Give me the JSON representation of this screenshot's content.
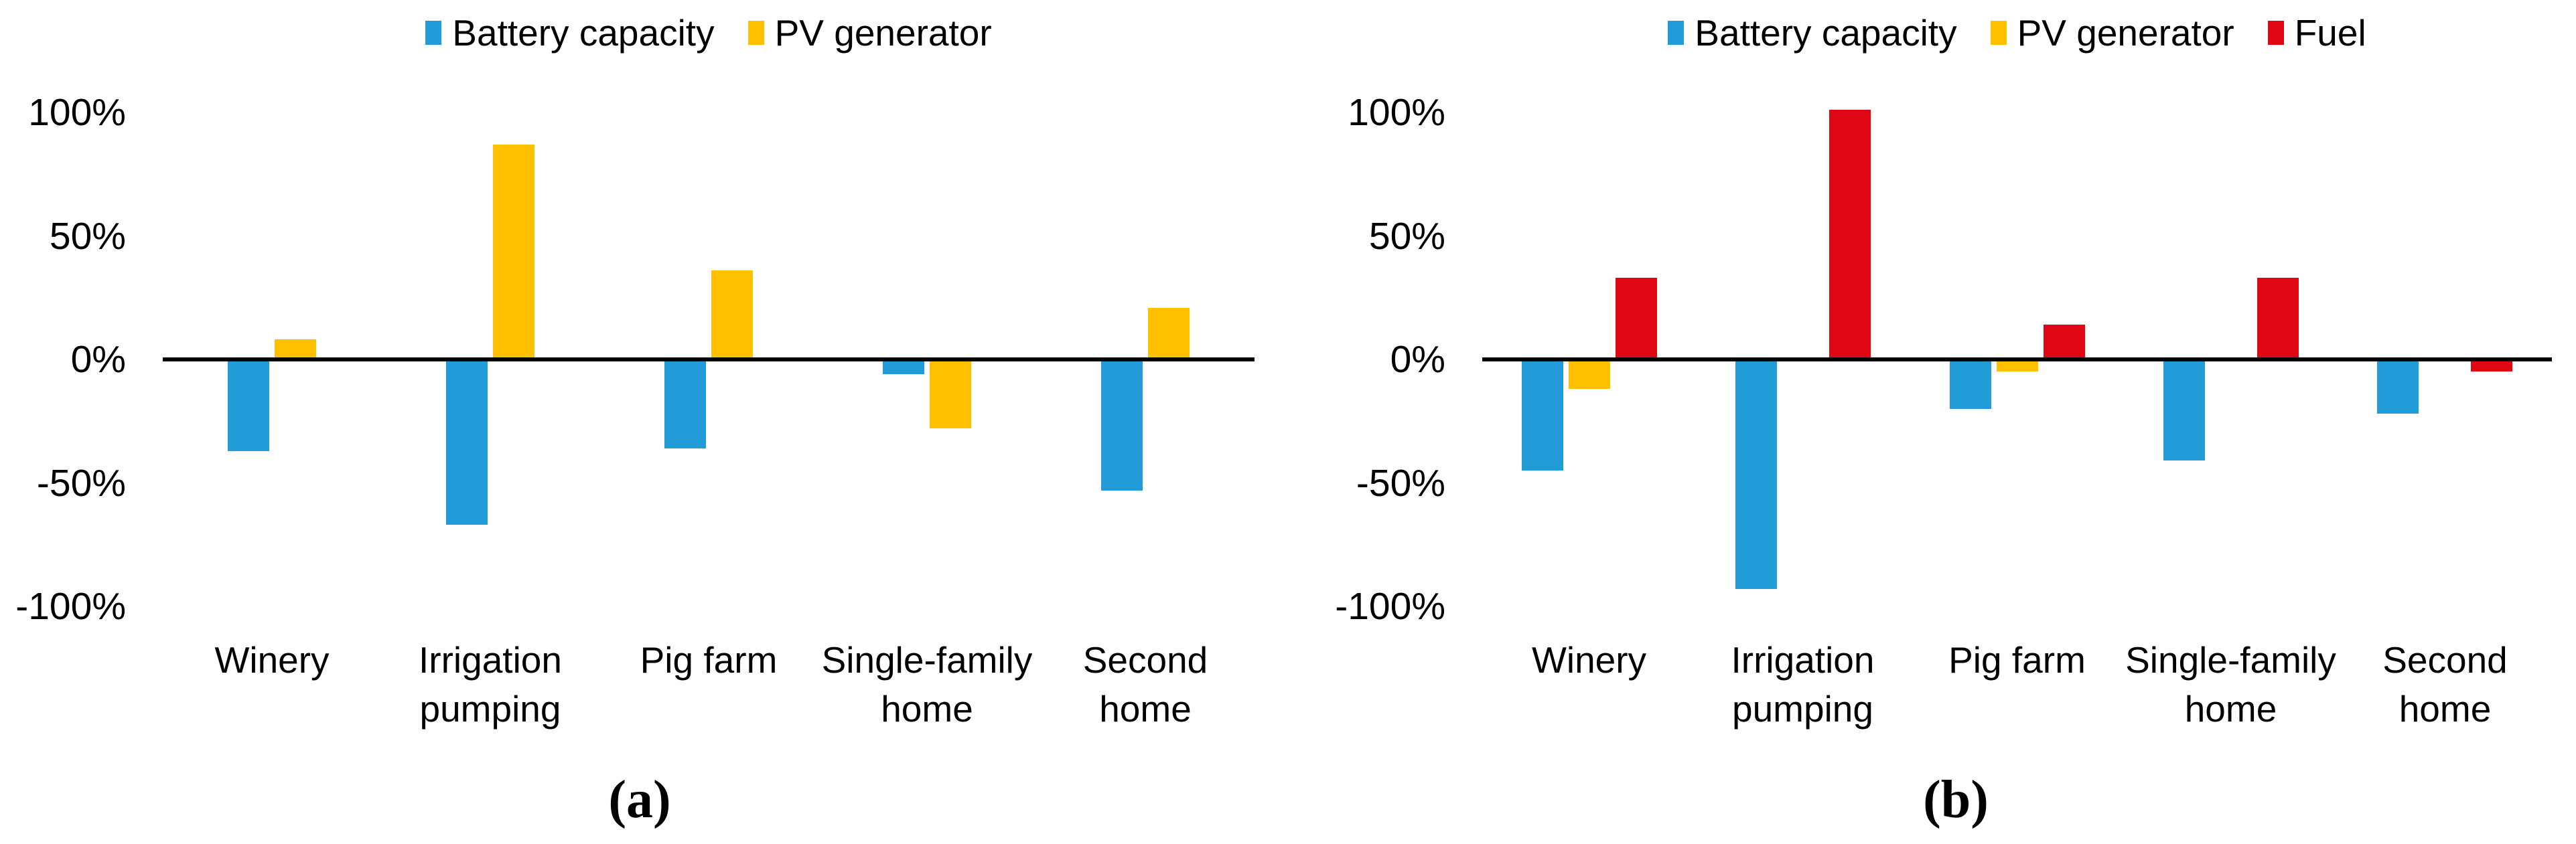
{
  "figure": {
    "background_color": "#ffffff",
    "text_color": "#000000",
    "axis_color": "#000000"
  },
  "chart_data": [
    {
      "id": "a",
      "type": "bar",
      "caption": "(a)",
      "title": "",
      "xlabel": "",
      "ylabel": "",
      "categories": [
        "Winery",
        "Irrigation pumping",
        "Pig farm",
        "Single-family home",
        "Second home"
      ],
      "category_label_lines": [
        "Winery",
        "Irrigation\npumping",
        "Pig farm",
        "Single-family\nhome",
        "Second\nhome"
      ],
      "series": [
        {
          "name": "Battery capacity",
          "color": "#219CD9",
          "values": [
            -37,
            -67,
            -36,
            -6,
            -53
          ]
        },
        {
          "name": "PV generator",
          "color": "#FFC000",
          "values": [
            8,
            87,
            36,
            -28,
            21
          ]
        }
      ],
      "yticks": [
        100,
        50,
        0,
        -50,
        -100
      ],
      "ytick_labels": [
        "100%",
        "50%",
        "0%",
        "-50%",
        "-100%"
      ],
      "ylim": [
        -100,
        101
      ],
      "grid": false,
      "legend_position": "top-center"
    },
    {
      "id": "b",
      "type": "bar",
      "caption": "(b)",
      "title": "",
      "xlabel": "",
      "ylabel": "",
      "categories": [
        "Winery",
        "Irrigation pumping",
        "Pig farm",
        "Single-family home",
        "Second home"
      ],
      "category_label_lines": [
        "Winery",
        "Irrigation\npumping",
        "Pig farm",
        "Single-family\nhome",
        "Second\nhome"
      ],
      "series": [
        {
          "name": "Battery capacity",
          "color": "#219CD9",
          "values": [
            -45,
            -93,
            -20,
            -41,
            -22
          ]
        },
        {
          "name": "PV generator",
          "color": "#FFC000",
          "values": [
            -12,
            0,
            -5,
            0,
            0
          ]
        },
        {
          "name": "Fuel",
          "color": "#E00714",
          "values": [
            33,
            101,
            14,
            33,
            -5
          ]
        }
      ],
      "yticks": [
        100,
        50,
        0,
        -50,
        -100
      ],
      "ytick_labels": [
        "100%",
        "50%",
        "0%",
        "-50%",
        "-100%"
      ],
      "ylim": [
        -100,
        101
      ],
      "grid": false,
      "legend_position": "top-center"
    }
  ]
}
